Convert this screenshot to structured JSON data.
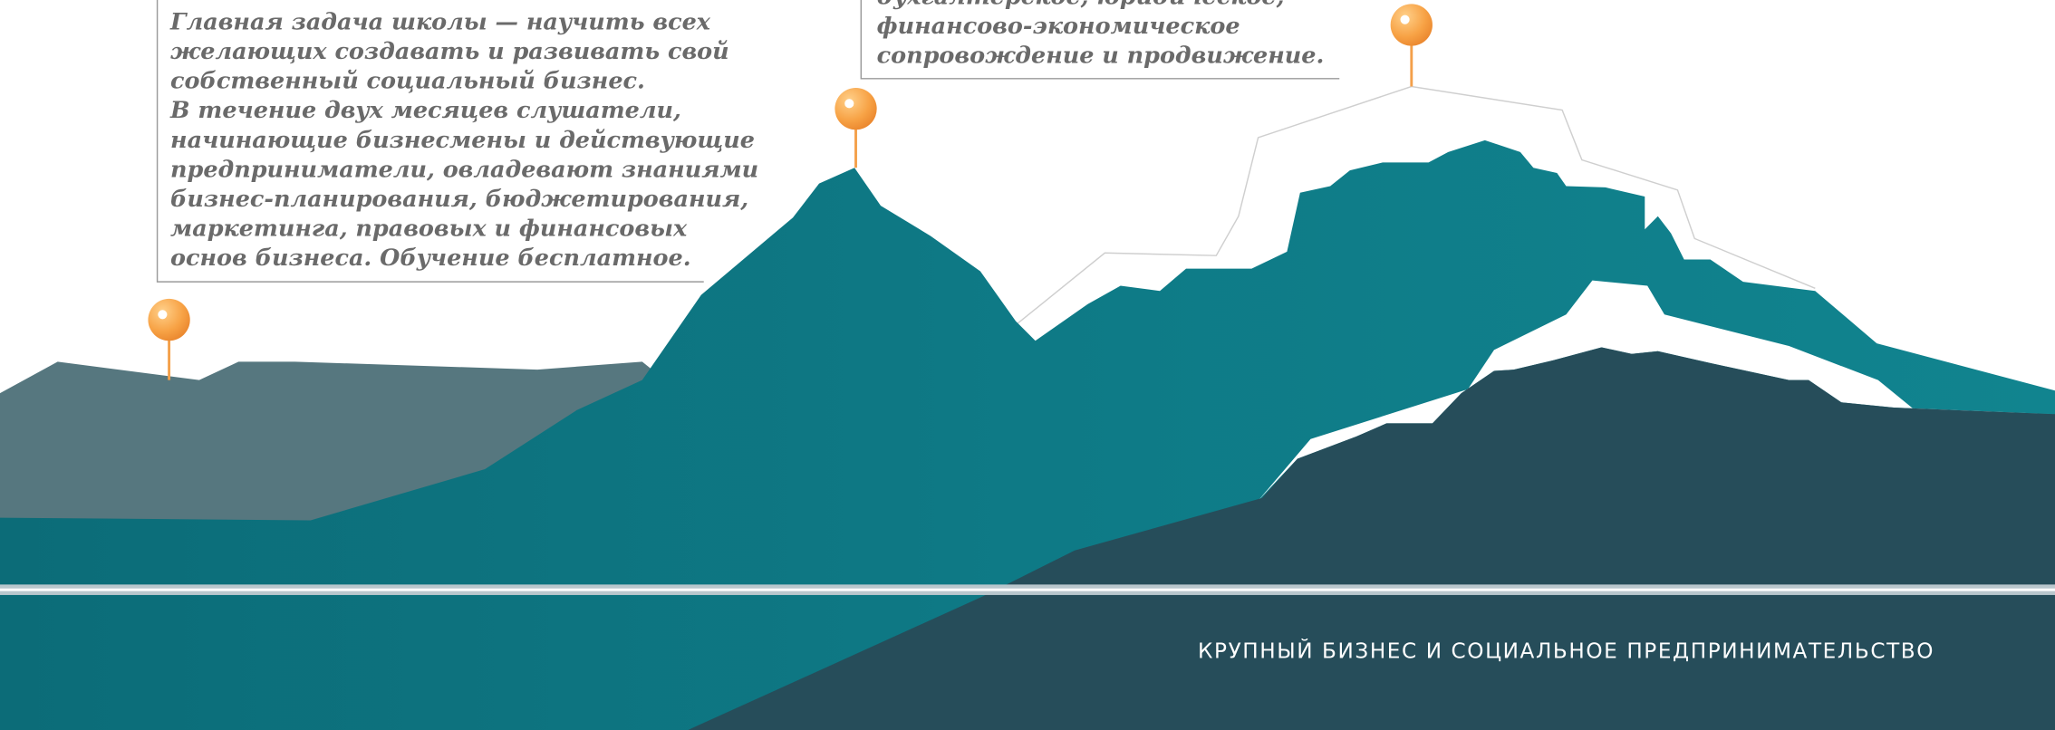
{
  "text_blocks": [
    {
      "lines": [
        "Главная задача школы — научить всех",
        "желающих создавать и развивать свой",
        "собственный социальный бизнес.",
        "В течение двух месяцев слушатели,",
        "начинающие бизнесмены и действующие",
        "предприниматели, овладевают знаниями",
        "бизнес-планирования, бюджетирования,",
        "маркетинга, правовых и финансовых",
        "основ бизнеса. Обучение бесплатное."
      ]
    },
    {
      "lines": [
        "бухгалтерское, юридическое,",
        "финансово-экономическое",
        "сопровождение и продвижение."
      ]
    }
  ],
  "footer": "КРУПНЫЙ БИЗНЕС И СОЦИАЛЬНОЕ ПРЕДПРИНИМАТЕЛЬСТВО"
}
